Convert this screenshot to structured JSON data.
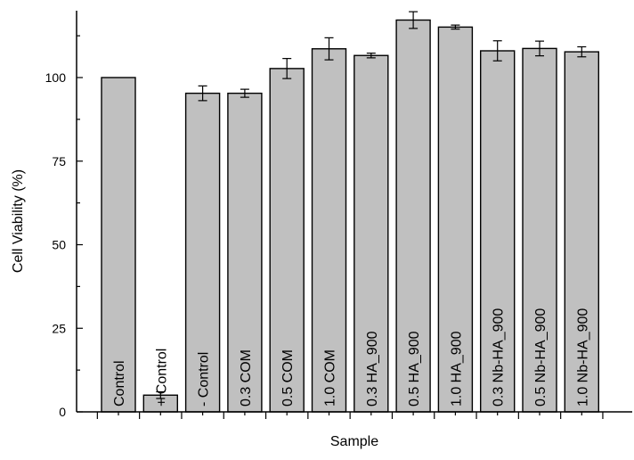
{
  "chart_data": {
    "type": "bar",
    "title": "",
    "xlabel": "Sample",
    "ylabel": "Cell Viability (%)",
    "ylim": [
      0,
      120
    ],
    "yticks": [
      0,
      25,
      50,
      75,
      100
    ],
    "categories": [
      "Control",
      "+ Control",
      "- Control",
      "0.3 COM",
      "0.5 COM",
      "1.0 COM",
      "0.3 HA_900",
      "0.5 HA_900",
      "1.0 HA_900",
      "0.3 Nb-HA_900",
      "0.5 Nb-HA_900",
      "1.0 Nb-HA_900"
    ],
    "values": [
      100,
      5,
      95.3,
      95.3,
      102.7,
      108.6,
      106.6,
      117.2,
      115.1,
      108.0,
      108.7,
      107.7
    ],
    "errors": [
      0,
      1.0,
      2.2,
      1.2,
      3.0,
      3.3,
      0.7,
      2.5,
      0.6,
      3.0,
      2.2,
      1.5
    ],
    "bar_color": "#c0c0c0",
    "grid": false,
    "legend": "none"
  }
}
